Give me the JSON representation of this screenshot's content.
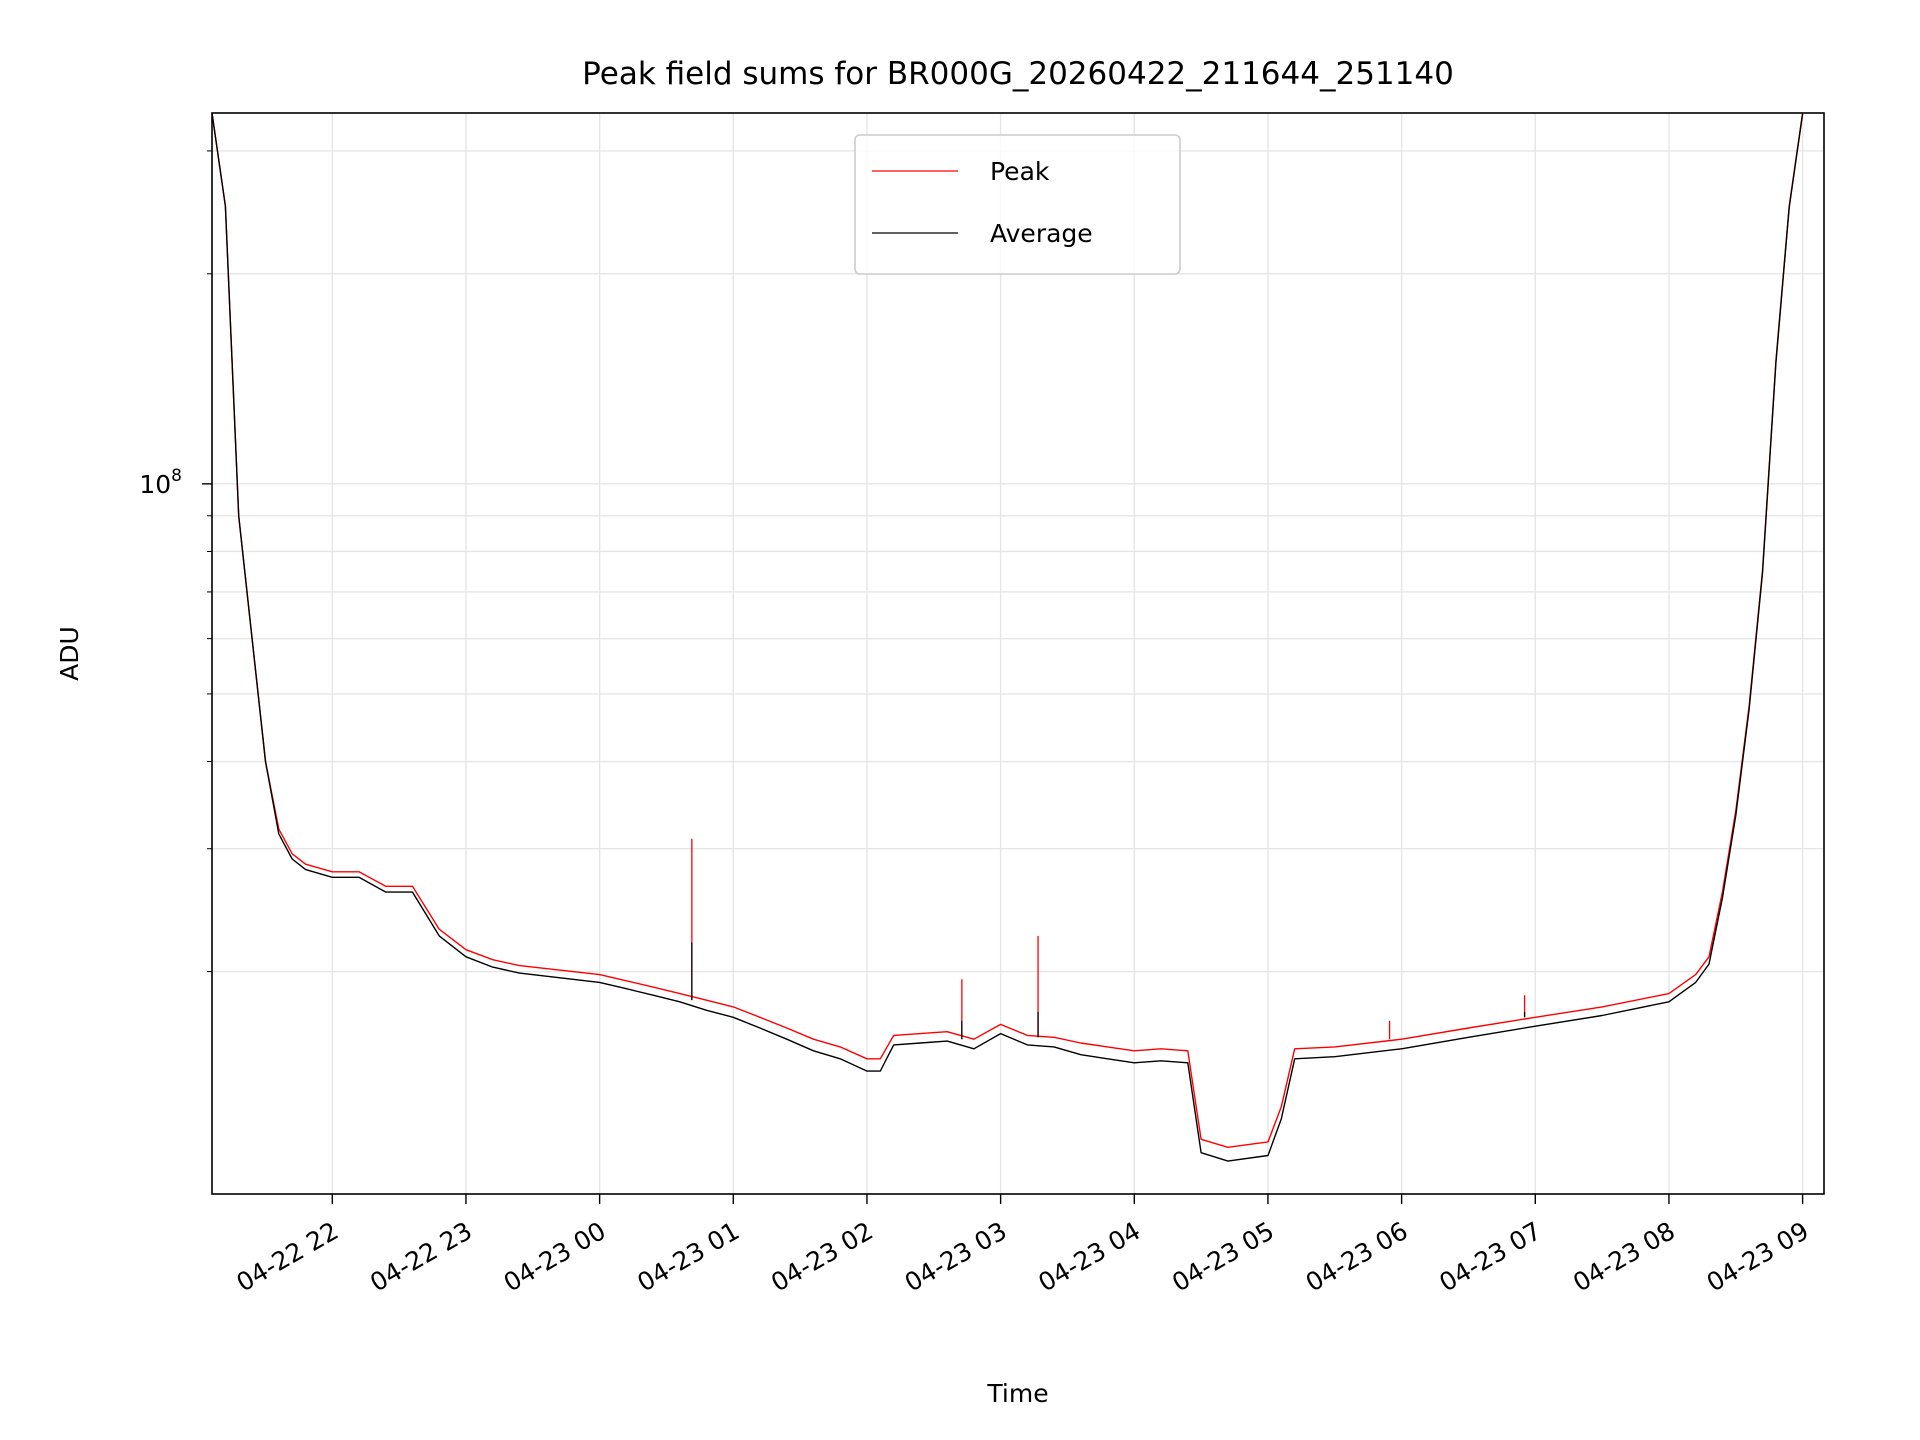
{
  "chart_data": {
    "type": "line",
    "title": "Peak field sums for BR000G_20260422_211644_251140",
    "xlabel": "Time",
    "ylabel": "ADU",
    "yscale": "log",
    "x_units": "hours since 2026-04-22 21:00",
    "xlim": [
      0.1,
      12.16
    ],
    "ylim": [
      9600000.0,
      340000000.0
    ],
    "grid": true,
    "legend_position": "upper-center",
    "x_ticks": [
      {
        "value": 1,
        "label": "04-22 22"
      },
      {
        "value": 2,
        "label": "04-22 23"
      },
      {
        "value": 3,
        "label": "04-23 00"
      },
      {
        "value": 4,
        "label": "04-23 01"
      },
      {
        "value": 5,
        "label": "04-23 02"
      },
      {
        "value": 6,
        "label": "04-23 03"
      },
      {
        "value": 7,
        "label": "04-23 04"
      },
      {
        "value": 8,
        "label": "04-23 05"
      },
      {
        "value": 9,
        "label": "04-23 06"
      },
      {
        "value": 10,
        "label": "04-23 07"
      },
      {
        "value": 11,
        "label": "04-23 08"
      },
      {
        "value": 12,
        "label": "04-23 09"
      }
    ],
    "y_tick_major": {
      "value": 100000000,
      "base": "10",
      "exponent": "8"
    },
    "y_minor_ticks": [
      20000000,
      30000000,
      40000000,
      50000000,
      60000000,
      70000000,
      80000000,
      90000000,
      200000000,
      300000000
    ],
    "series": [
      {
        "name": "Peak",
        "color": "#ff0000",
        "x": [
          0.1,
          0.2,
          0.3,
          0.4,
          0.5,
          0.6,
          0.7,
          0.8,
          1.0,
          1.2,
          1.4,
          1.6,
          1.8,
          2.0,
          2.2,
          2.4,
          2.6,
          2.8,
          3.0,
          3.2,
          3.4,
          3.6,
          3.8,
          4.0,
          4.2,
          4.4,
          4.6,
          4.8,
          5.0,
          5.1,
          5.2,
          5.4,
          5.6,
          5.8,
          6.0,
          6.2,
          6.4,
          6.6,
          6.8,
          7.0,
          7.2,
          7.4,
          7.5,
          7.7,
          8.0,
          8.1,
          8.2,
          8.5,
          9.0,
          9.5,
          10.0,
          10.5,
          11.0,
          11.2,
          11.3,
          11.4,
          11.5,
          11.6,
          11.7,
          11.8,
          11.9,
          12.0
        ],
        "values": [
          340000000,
          250000000,
          90000000,
          60000000,
          40000000,
          32000000,
          29500000,
          28500000,
          27800000,
          27800000,
          26500000,
          26500000,
          23000000,
          21500000,
          20800000,
          20400000,
          20200000,
          20000000,
          19800000,
          19400000,
          19000000,
          18600000,
          18200000,
          17800000,
          17200000,
          16600000,
          16000000,
          15600000,
          15000000,
          15000000,
          16200000,
          16300000,
          16400000,
          16000000,
          16800000,
          16200000,
          16100000,
          15800000,
          15600000,
          15400000,
          15500000,
          15400000,
          11500000,
          11200000,
          11400000,
          12800000,
          15500000,
          15600000,
          16000000,
          16600000,
          17200000,
          17800000,
          18600000,
          19800000,
          21000000,
          26000000,
          34000000,
          48000000,
          75000000,
          150000000,
          250000000,
          340000000
        ]
      },
      {
        "name": "Average",
        "color": "#000000",
        "x": [
          0.1,
          0.2,
          0.3,
          0.4,
          0.5,
          0.6,
          0.7,
          0.8,
          1.0,
          1.2,
          1.4,
          1.6,
          1.8,
          2.0,
          2.2,
          2.4,
          2.6,
          2.8,
          3.0,
          3.2,
          3.4,
          3.6,
          3.8,
          4.0,
          4.2,
          4.4,
          4.6,
          4.8,
          5.0,
          5.1,
          5.2,
          5.4,
          5.6,
          5.8,
          6.0,
          6.2,
          6.4,
          6.6,
          6.8,
          7.0,
          7.2,
          7.4,
          7.5,
          7.7,
          8.0,
          8.1,
          8.2,
          8.5,
          9.0,
          9.5,
          10.0,
          10.5,
          11.0,
          11.2,
          11.3,
          11.4,
          11.5,
          11.6,
          11.7,
          11.8,
          11.9,
          12.0
        ],
        "values": [
          340000000,
          250000000,
          90000000,
          60000000,
          40000000,
          31500000,
          29000000,
          28000000,
          27300000,
          27300000,
          26000000,
          26000000,
          22500000,
          21000000,
          20300000,
          19900000,
          19700000,
          19500000,
          19300000,
          18900000,
          18500000,
          18100000,
          17600000,
          17200000,
          16600000,
          16000000,
          15400000,
          15000000,
          14400000,
          14400000,
          15700000,
          15800000,
          15900000,
          15500000,
          16300000,
          15700000,
          15600000,
          15200000,
          15000000,
          14800000,
          14900000,
          14800000,
          11000000,
          10700000,
          10900000,
          12300000,
          15000000,
          15100000,
          15500000,
          16100000,
          16700000,
          17300000,
          18100000,
          19300000,
          20500000,
          25500000,
          33500000,
          47500000,
          74500000,
          149000000,
          249000000,
          339000000
        ]
      }
    ],
    "spikes": [
      {
        "x": 3.69,
        "peak": 31000000,
        "average": 22000000
      },
      {
        "x": 5.71,
        "peak": 19500000,
        "average": 17000000
      },
      {
        "x": 6.28,
        "peak": 22500000,
        "average": 17500000
      },
      {
        "x": 8.91,
        "peak": 17000000,
        "average": 16000000
      },
      {
        "x": 9.92,
        "peak": 18500000,
        "average": 17500000
      }
    ]
  }
}
